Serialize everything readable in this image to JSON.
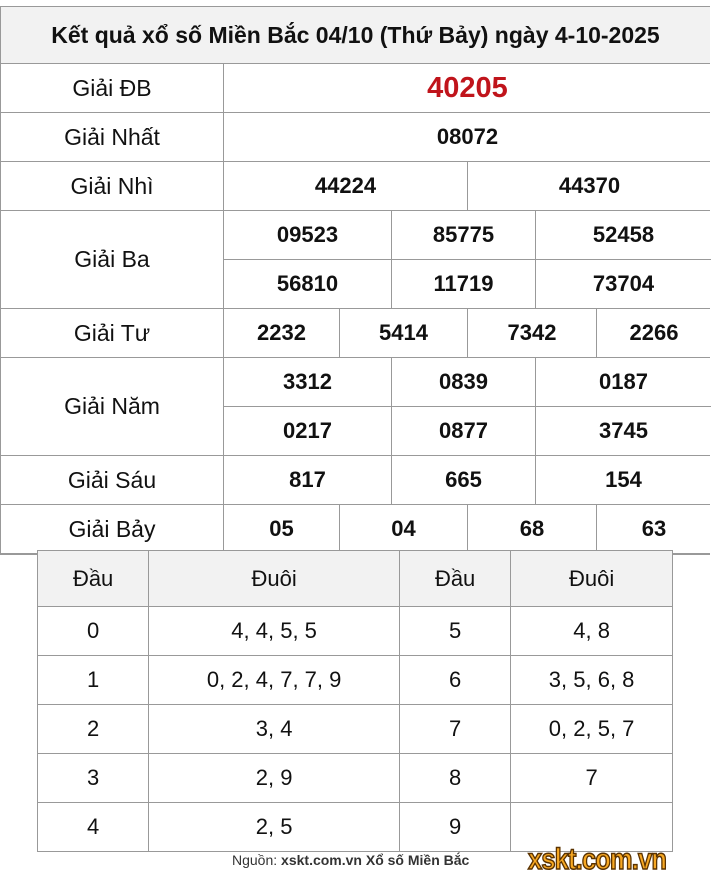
{
  "title": "Kết quả xổ số Miền Bắc 04/10 (Thứ Bảy) ngày 4-10-2025",
  "prizes": [
    {
      "label": "Giải ĐB",
      "rows": [
        [
          "40205"
        ]
      ]
    },
    {
      "label": "Giải Nhất",
      "rows": [
        [
          "08072"
        ]
      ]
    },
    {
      "label": "Giải Nhì",
      "rows": [
        [
          "44224",
          "44370"
        ]
      ]
    },
    {
      "label": "Giải Ba",
      "rows": [
        [
          "09523",
          "85775",
          "52458"
        ],
        [
          "56810",
          "11719",
          "73704"
        ]
      ]
    },
    {
      "label": "Giải Tư",
      "rows": [
        [
          "2232",
          "5414",
          "7342",
          "2266"
        ]
      ]
    },
    {
      "label": "Giải Năm",
      "rows": [
        [
          "3312",
          "0839",
          "0187"
        ],
        [
          "0217",
          "0877",
          "3745"
        ]
      ]
    },
    {
      "label": "Giải Sáu",
      "rows": [
        [
          "817",
          "665",
          "154"
        ]
      ]
    },
    {
      "label": "Giải Bảy",
      "rows": [
        [
          "05",
          "04",
          "68",
          "63"
        ]
      ]
    }
  ],
  "loto": {
    "headers": [
      "Đầu",
      "Đuôi",
      "Đầu",
      "Đuôi"
    ],
    "rows": [
      [
        "0",
        "4, 4, 5, 5",
        "5",
        "4, 8"
      ],
      [
        "1",
        "0, 2, 4, 7, 7, 9",
        "6",
        "3, 5, 6, 8"
      ],
      [
        "2",
        "3, 4",
        "7",
        "0, 2, 5, 7"
      ],
      [
        "3",
        "2, 9",
        "8",
        "7"
      ],
      [
        "4",
        "2, 5",
        "9",
        ""
      ]
    ]
  },
  "footer": {
    "prefix": "Nguồn:",
    "source": "xskt.com.vn Xổ số Miền Bắc"
  },
  "logo": "xskt.com.vn",
  "colors": {
    "special_prize": "#c0141b",
    "logo": "#f7a823"
  }
}
